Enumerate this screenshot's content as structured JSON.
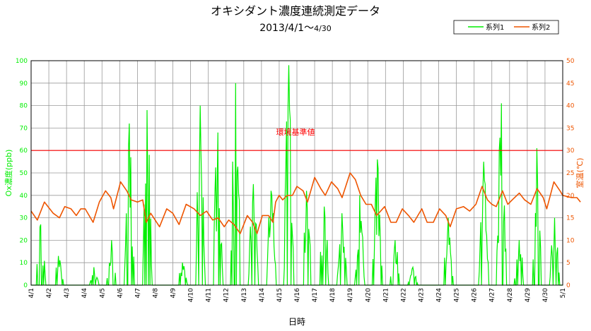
{
  "chart_data": {
    "type": "line",
    "title": "オキシダント濃度連続測定データ",
    "subtitle_main": "2013/4/1～",
    "subtitle_small": "4/30",
    "xlabel": "日時",
    "ylabel_left": "Ox濃度(ppb)",
    "ylabel_right": "室温(℃)",
    "ylim_left": [
      0,
      100
    ],
    "ylim_right": [
      0,
      50
    ],
    "yticks_left": [
      "0",
      "10",
      "20",
      "30",
      "40",
      "50",
      "60",
      "70",
      "80",
      "90",
      "100"
    ],
    "yticks_right": [
      "0",
      "5",
      "10",
      "15",
      "20",
      "25",
      "30",
      "35",
      "40",
      "45",
      "50"
    ],
    "x_tick_labels": [
      "4/1",
      "4/2",
      "4/3",
      "4/4",
      "4/5",
      "4/6",
      "4/7",
      "4/8",
      "4/9",
      "4/10",
      "4/11",
      "4/12",
      "4/13",
      "4/14",
      "4/15",
      "4/16",
      "4/17",
      "4/18",
      "4/19",
      "4/20",
      "4/21",
      "4/22",
      "4/23",
      "4/24",
      "4/25",
      "4/26",
      "4/27",
      "4/28",
      "4/29",
      "4/30",
      "5/1"
    ],
    "grid": true,
    "legend_position": "top-right",
    "reference_line": {
      "label": "環境基準値",
      "value": 60,
      "axis": "left",
      "color": "#ff0000"
    },
    "series": [
      {
        "name": "系列1",
        "axis": "left",
        "color": "#00ee00",
        "daily_peaks": [
          27,
          13,
          0,
          8,
          20,
          72,
          78,
          0,
          10,
          80,
          68,
          90,
          45,
          42,
          98,
          42,
          35,
          32,
          40,
          56,
          20,
          8,
          0,
          30,
          0,
          55,
          81,
          20,
          61,
          30
        ]
      },
      {
        "name": "系列2",
        "axis": "right",
        "color": "#ee5500",
        "daily_points": [
          [
            0,
            16.5
          ],
          [
            0.35,
            14.5
          ],
          [
            0.75,
            18.5
          ],
          [
            1.25,
            16
          ],
          [
            1.6,
            15
          ],
          [
            1.9,
            17.5
          ],
          [
            2.25,
            17
          ],
          [
            2.55,
            15.5
          ],
          [
            2.8,
            17
          ],
          [
            3.05,
            17
          ],
          [
            3.5,
            14
          ],
          [
            3.85,
            18.5
          ],
          [
            4.2,
            21
          ],
          [
            4.5,
            19.5
          ],
          [
            4.65,
            17
          ],
          [
            5.05,
            23
          ],
          [
            5.4,
            21
          ],
          [
            5.65,
            19
          ],
          [
            6.0,
            18.5
          ],
          [
            6.3,
            19
          ],
          [
            6.5,
            14
          ],
          [
            6.75,
            16
          ],
          [
            7.25,
            13
          ],
          [
            7.65,
            17
          ],
          [
            8.0,
            16
          ],
          [
            8.35,
            13.5
          ],
          [
            8.75,
            18
          ],
          [
            9.2,
            17
          ],
          [
            9.55,
            15.5
          ],
          [
            9.9,
            16.5
          ],
          [
            10.25,
            14.5
          ],
          [
            10.55,
            15
          ],
          [
            10.9,
            13
          ],
          [
            11.15,
            14.5
          ],
          [
            11.45,
            13.5
          ],
          [
            11.8,
            11.5
          ],
          [
            12.2,
            15.5
          ],
          [
            12.5,
            14
          ],
          [
            12.75,
            11.5
          ],
          [
            13.05,
            15.5
          ],
          [
            13.4,
            15.5
          ],
          [
            13.65,
            14
          ],
          [
            13.8,
            18.5
          ],
          [
            14.0,
            20
          ],
          [
            14.2,
            19
          ],
          [
            14.45,
            20
          ],
          [
            14.75,
            20
          ],
          [
            15.0,
            22
          ],
          [
            15.35,
            21
          ],
          [
            15.6,
            18.5
          ],
          [
            16.0,
            24
          ],
          [
            16.35,
            21.5
          ],
          [
            16.6,
            20
          ],
          [
            16.95,
            23
          ],
          [
            17.3,
            21.5
          ],
          [
            17.55,
            19.5
          ],
          [
            18.0,
            25
          ],
          [
            18.3,
            23.5
          ],
          [
            18.6,
            20
          ],
          [
            18.9,
            18
          ],
          [
            19.2,
            18
          ],
          [
            19.5,
            15.5
          ],
          [
            19.95,
            17.5
          ],
          [
            20.3,
            14
          ],
          [
            20.6,
            14
          ],
          [
            20.95,
            17
          ],
          [
            21.3,
            15.5
          ],
          [
            21.6,
            14
          ],
          [
            22.05,
            17
          ],
          [
            22.35,
            14
          ],
          [
            22.7,
            14
          ],
          [
            23.05,
            17
          ],
          [
            23.4,
            15.5
          ],
          [
            23.65,
            13
          ],
          [
            24.0,
            17
          ],
          [
            24.4,
            17.5
          ],
          [
            24.75,
            16.5
          ],
          [
            25.1,
            18
          ],
          [
            25.45,
            22
          ],
          [
            25.75,
            19
          ],
          [
            26.0,
            18
          ],
          [
            26.25,
            17.5
          ],
          [
            26.6,
            21
          ],
          [
            26.9,
            18
          ],
          [
            27.15,
            19
          ],
          [
            27.55,
            20.5
          ],
          [
            27.85,
            19
          ],
          [
            28.2,
            18
          ],
          [
            28.55,
            21.5
          ],
          [
            28.9,
            19.5
          ],
          [
            29.1,
            17
          ],
          [
            29.5,
            23
          ],
          [
            29.85,
            21
          ],
          [
            30.0,
            20
          ],
          [
            30.5,
            19.5
          ],
          [
            30.8,
            19.5
          ],
          [
            31.0,
            18.5
          ]
        ]
      }
    ]
  }
}
